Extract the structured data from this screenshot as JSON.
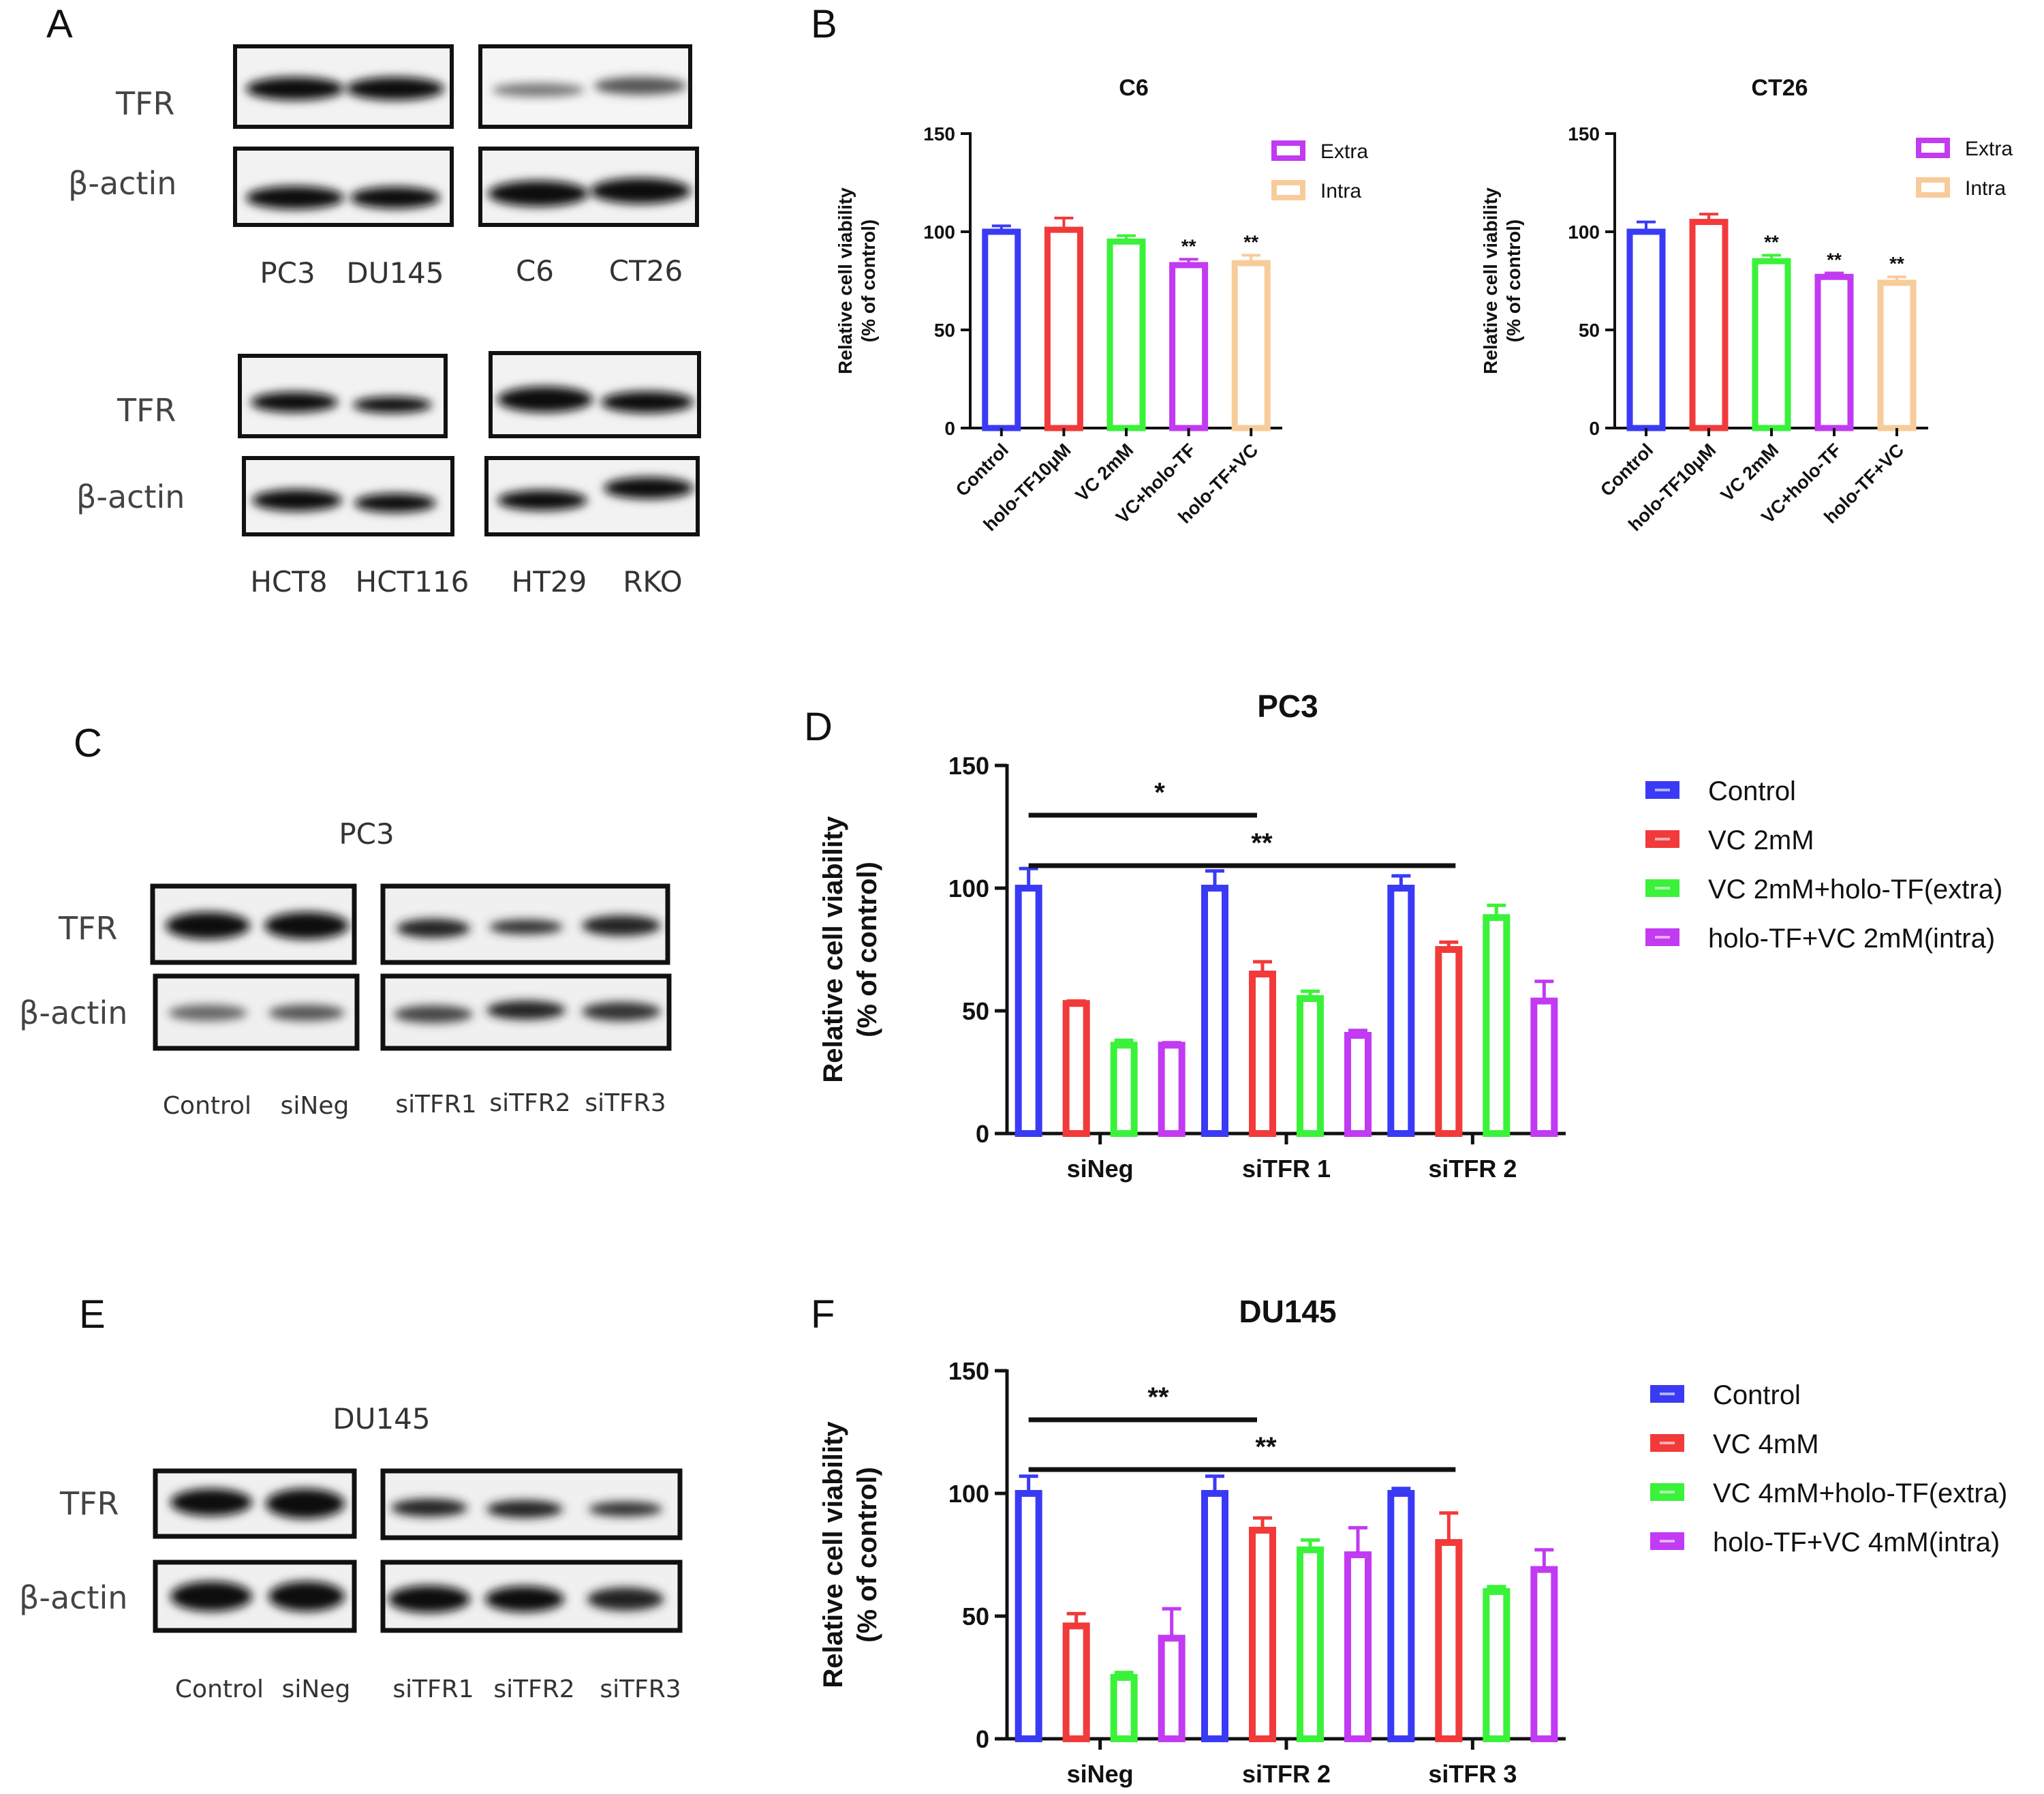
{
  "panels": {
    "A": "A",
    "B": "B",
    "C": "C",
    "D": "D",
    "E": "E",
    "F": "F"
  },
  "blots": {
    "A": {
      "rows": [
        "TFR",
        "β-actin"
      ],
      "top_lanes": [
        "PC3",
        "DU145",
        "C6",
        "CT26"
      ],
      "bottom_lanes": [
        "HCT8",
        "HCT116",
        "HT29",
        "RKO"
      ]
    },
    "C": {
      "title": "PC3",
      "rows": [
        "TFR",
        "β-actin"
      ],
      "lanes": [
        "Control",
        "siNeg",
        "siTFR1",
        "siTFR2",
        "siTFR3"
      ]
    },
    "E": {
      "title": "DU145",
      "rows": [
        "TFR",
        "β-actin"
      ],
      "lanes": [
        "Control",
        "siNeg",
        "siTFR1",
        "siTFR2",
        "siTFR3"
      ]
    }
  },
  "colors": {
    "blue": "#3a3af5",
    "red": "#f23a3a",
    "green": "#3af23a",
    "purple": "#c23af2",
    "peach": "#f7cc9a"
  },
  "chart_data": [
    {
      "id": "B-C6",
      "type": "bar",
      "title": "C6",
      "ylabel_line1": "Relative cell viability",
      "ylabel_line2": "(% of control)",
      "ylim": [
        0,
        150
      ],
      "yticks": [
        0,
        50,
        100,
        150
      ],
      "categories": [
        "Control",
        "holo-TF10μM",
        "VC 2mM",
        "VC+holo-TF",
        "holo-TF+VC"
      ],
      "values": [
        100,
        101,
        95,
        83,
        84
      ],
      "errors": [
        3,
        6,
        3,
        3,
        4
      ],
      "colors": [
        "#3a3af5",
        "#f23a3a",
        "#3af23a",
        "#c23af2",
        "#f7cc9a"
      ],
      "significance": [
        "",
        "",
        "",
        "**",
        "**"
      ],
      "legend": [
        {
          "label": "Extra",
          "color": "#c23af2"
        },
        {
          "label": "Intra",
          "color": "#f7cc9a"
        }
      ]
    },
    {
      "id": "B-CT26",
      "type": "bar",
      "title": "CT26",
      "ylabel_line1": "Relative cell viability",
      "ylabel_line2": "(% of control)",
      "ylim": [
        0,
        150
      ],
      "yticks": [
        0,
        50,
        100,
        150
      ],
      "categories": [
        "Control",
        "holo-TF10μM",
        "VC 2mM",
        "VC+holo-TF",
        "holo-TF+VC"
      ],
      "values": [
        100,
        105,
        85,
        77,
        74
      ],
      "errors": [
        5,
        4,
        3,
        2,
        3
      ],
      "colors": [
        "#3a3af5",
        "#f23a3a",
        "#3af23a",
        "#c23af2",
        "#f7cc9a"
      ],
      "significance": [
        "",
        "",
        "**",
        "**",
        "**"
      ],
      "legend": [
        {
          "label": "Extra",
          "color": "#c23af2"
        },
        {
          "label": "Intra",
          "color": "#f7cc9a"
        }
      ]
    },
    {
      "id": "D",
      "type": "bar",
      "title": "PC3",
      "ylabel_line1": "Relative cell viability",
      "ylabel_line2": "(% of control)",
      "ylim": [
        0,
        150
      ],
      "yticks": [
        0,
        50,
        100,
        150
      ],
      "categories": [
        "siNeg",
        "siTFR 1",
        "siTFR 2"
      ],
      "series": [
        {
          "name": "Control",
          "color": "#3a3af5",
          "values": [
            100,
            100,
            100
          ],
          "errors": [
            8,
            7,
            5
          ]
        },
        {
          "name": "VC 2mM",
          "color": "#f23a3a",
          "values": [
            53,
            65,
            75
          ],
          "errors": [
            1,
            5,
            3
          ]
        },
        {
          "name": "VC 2mM+holo-TF(extra)",
          "color": "#3af23a",
          "values": [
            36,
            55,
            88
          ],
          "errors": [
            2,
            3,
            5
          ]
        },
        {
          "name": "holo-TF+VC 2mM(intra)",
          "color": "#c23af2",
          "values": [
            36,
            40,
            54
          ],
          "errors": [
            1,
            2,
            8
          ]
        }
      ],
      "brackets": [
        {
          "from": 0,
          "to": 1,
          "label": "*"
        },
        {
          "from": 0,
          "to": 2,
          "label": "**"
        }
      ]
    },
    {
      "id": "F",
      "type": "bar",
      "title": "DU145",
      "ylabel_line1": "Relative cell viability",
      "ylabel_line2": "(% of control)",
      "ylim": [
        0,
        150
      ],
      "yticks": [
        0,
        50,
        100,
        150
      ],
      "categories": [
        "siNeg",
        "siTFR 2",
        "siTFR 3"
      ],
      "series": [
        {
          "name": "Control",
          "color": "#3a3af5",
          "values": [
            100,
            100,
            100
          ],
          "errors": [
            7,
            7,
            2
          ]
        },
        {
          "name": "VC 4mM",
          "color": "#f23a3a",
          "values": [
            46,
            85,
            80
          ],
          "errors": [
            5,
            5,
            12
          ]
        },
        {
          "name": "VC 4mM+holo-TF(extra)",
          "color": "#3af23a",
          "values": [
            25,
            77,
            60
          ],
          "errors": [
            2,
            4,
            2
          ]
        },
        {
          "name": "holo-TF+VC 4mM(intra)",
          "color": "#c23af2",
          "values": [
            41,
            75,
            69
          ],
          "errors": [
            12,
            11,
            8
          ]
        }
      ],
      "brackets": [
        {
          "from": 0,
          "to": 1,
          "label": "**"
        },
        {
          "from": 0,
          "to": 2,
          "label": "**"
        }
      ]
    }
  ]
}
